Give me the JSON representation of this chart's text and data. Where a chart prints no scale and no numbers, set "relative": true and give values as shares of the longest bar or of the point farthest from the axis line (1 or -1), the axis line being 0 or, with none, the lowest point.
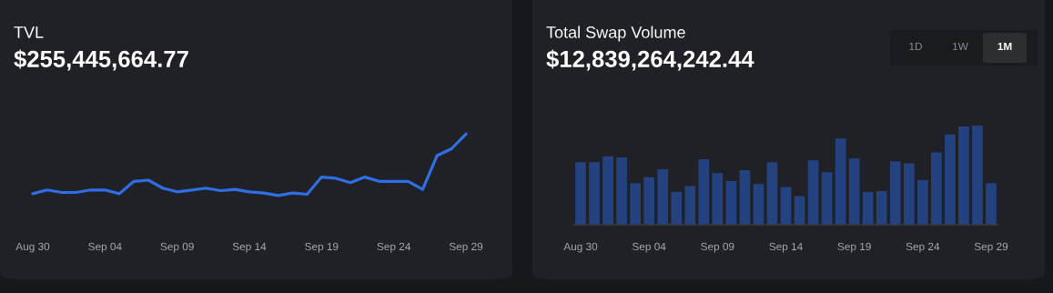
{
  "chart_data": [
    {
      "type": "line",
      "title": "TVL",
      "subtitle": "$255,445,664.77",
      "relative": true,
      "color": "#2f6ee5",
      "line_style": "solid",
      "categories": [
        "Aug 30",
        null,
        null,
        null,
        null,
        "Sep 04",
        null,
        null,
        null,
        null,
        "Sep 09",
        null,
        null,
        null,
        null,
        "Sep 14",
        null,
        null,
        null,
        null,
        "Sep 19",
        null,
        null,
        null,
        null,
        "Sep 24",
        null,
        null,
        null,
        null,
        "Sep 29"
      ],
      "values": [
        0.03,
        0.09,
        0.05,
        0.05,
        0.09,
        0.09,
        0.03,
        0.23,
        0.25,
        0.12,
        0.06,
        0.09,
        0.12,
        0.08,
        0.1,
        0.06,
        0.04,
        0.0,
        0.04,
        0.02,
        0.3,
        0.28,
        0.21,
        0.3,
        0.23,
        0.23,
        0.23,
        0.1,
        0.65,
        0.76,
        1.0
      ]
    },
    {
      "type": "bar",
      "title": "Total Swap Volume",
      "subtitle": "$12,839,264,242.44",
      "relative": true,
      "color": "#24427f",
      "annotations": [
        "1D",
        "1W",
        "1M"
      ],
      "categories": [
        "Aug 30",
        null,
        null,
        null,
        null,
        "Sep 04",
        null,
        null,
        null,
        null,
        "Sep 09",
        null,
        null,
        null,
        null,
        "Sep 14",
        null,
        null,
        null,
        null,
        "Sep 19",
        null,
        null,
        null,
        null,
        "Sep 24",
        null,
        null,
        null,
        null,
        "Sep 29"
      ],
      "values": [
        0.63,
        0.63,
        0.69,
        0.68,
        0.42,
        0.48,
        0.56,
        0.33,
        0.39,
        0.66,
        0.52,
        0.44,
        0.55,
        0.41,
        0.63,
        0.38,
        0.29,
        0.65,
        0.53,
        0.87,
        0.67,
        0.33,
        0.34,
        0.64,
        0.62,
        0.45,
        0.73,
        0.91,
        0.99,
        1.0,
        0.42
      ]
    }
  ]
}
